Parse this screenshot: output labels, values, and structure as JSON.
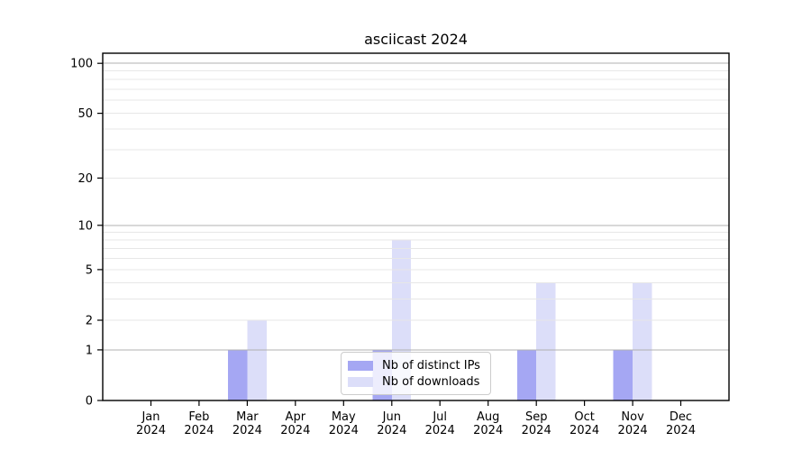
{
  "figure": {
    "title": "asciicast 2024",
    "background": "#ffffff"
  },
  "chart_data": {
    "type": "bar",
    "title": "asciicast 2024",
    "x_month_labels": [
      "Jan",
      "Feb",
      "Mar",
      "Apr",
      "May",
      "Jun",
      "Jul",
      "Aug",
      "Sep",
      "Oct",
      "Nov",
      "Dec"
    ],
    "x_year_label": "2024",
    "categories": [
      "Jan 2024",
      "Feb 2024",
      "Mar 2024",
      "Apr 2024",
      "May 2024",
      "Jun 2024",
      "Jul 2024",
      "Aug 2024",
      "Sep 2024",
      "Oct 2024",
      "Nov 2024",
      "Dec 2024"
    ],
    "series": [
      {
        "name": "Nb of distinct IPs",
        "color": "#a5a7f3",
        "values": [
          0,
          0,
          1,
          0,
          0,
          1,
          0,
          0,
          1,
          0,
          1,
          0
        ]
      },
      {
        "name": "Nb of downloads",
        "color": "#dcdef9",
        "values": [
          0,
          0,
          2,
          0,
          0,
          8,
          0,
          0,
          4,
          0,
          4,
          0
        ]
      }
    ],
    "y_axis": {
      "scale": "log1p",
      "ylim": [
        0,
        115
      ],
      "tick_values": [
        0,
        1,
        2,
        5,
        10,
        20,
        50,
        100
      ],
      "tick_labels": [
        "0",
        "1",
        "2",
        "5",
        "10",
        "20",
        "50",
        "100"
      ],
      "major_grid_values": [
        1,
        10,
        100
      ],
      "minor_grid_values": [
        2,
        3,
        4,
        5,
        6,
        7,
        8,
        9,
        20,
        30,
        40,
        50,
        60,
        70,
        80,
        90
      ]
    },
    "legend": {
      "position": "lower center",
      "entries": [
        "Nb of distinct IPs",
        "Nb of downloads"
      ]
    },
    "colors": {
      "major_grid": "#b0b0b0",
      "minor_grid": "#e7e7e7",
      "axis": "#000000",
      "text": "#000000"
    },
    "grid": "on",
    "bar_width_fraction": 0.4
  }
}
